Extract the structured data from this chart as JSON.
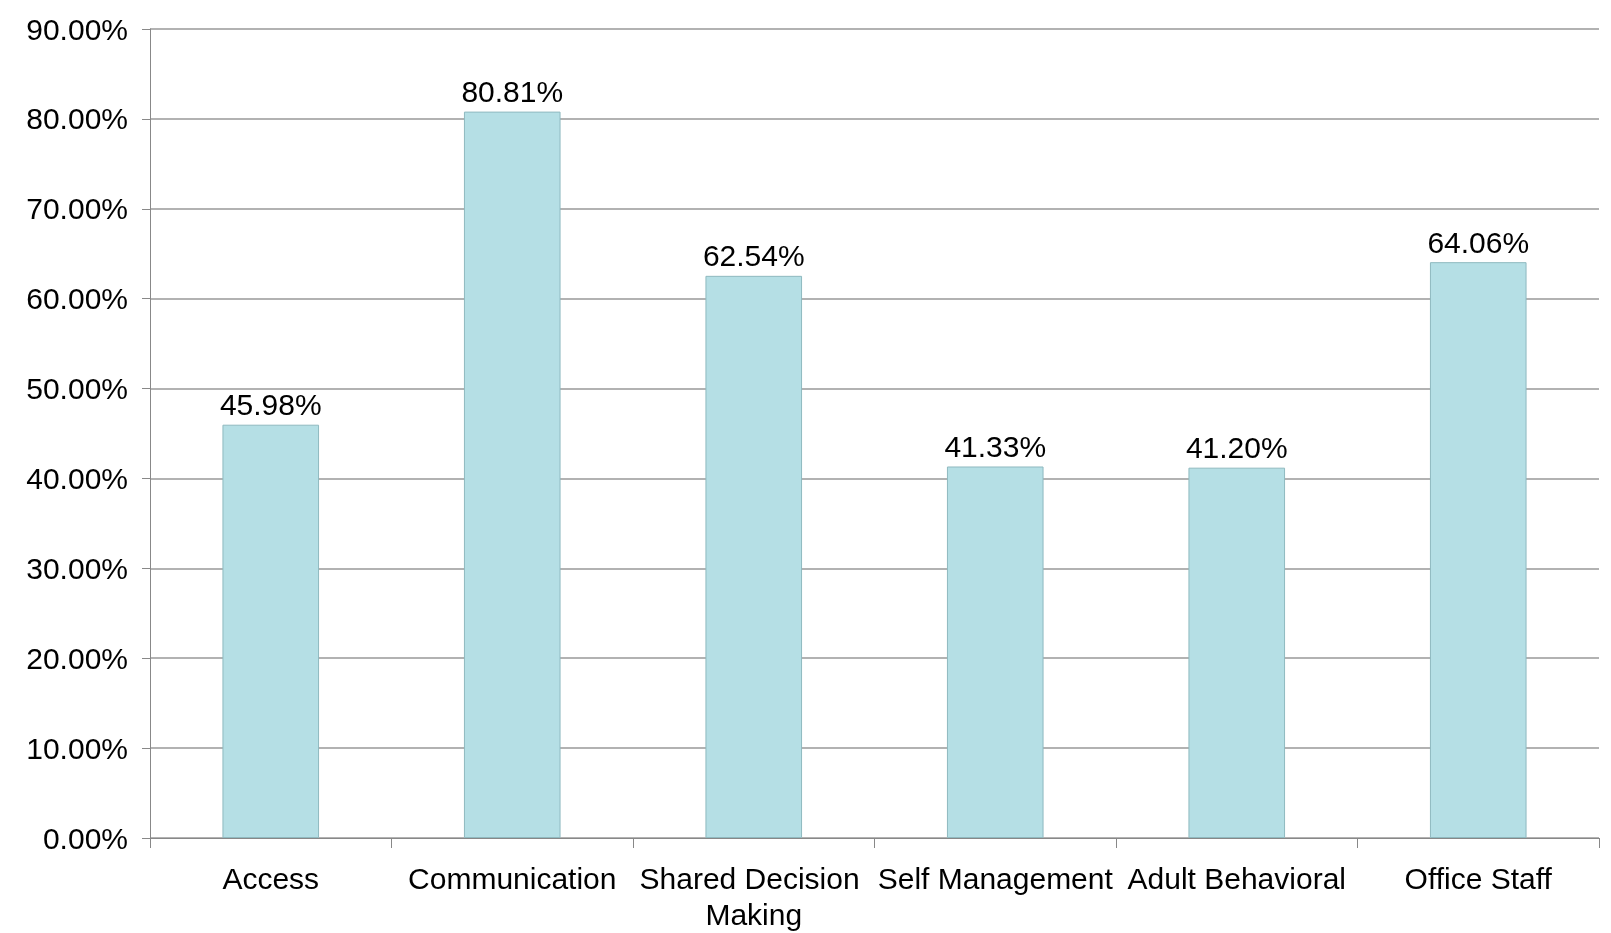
{
  "chart_data": {
    "type": "bar",
    "categories": [
      "Access",
      "Communication",
      "Shared Decision Making",
      "Self Management",
      "Adult Behavioral",
      "Office Staff"
    ],
    "values": [
      45.98,
      80.81,
      62.54,
      41.33,
      41.2,
      64.06
    ],
    "value_labels": [
      "45.98%",
      "80.81%",
      "62.54%",
      "41.33%",
      "41.20%",
      "64.06%"
    ],
    "color": "#b5dfe5",
    "ylim": [
      0,
      90
    ],
    "yticks": [
      {
        "value": 0,
        "label": "0.00%"
      },
      {
        "value": 10,
        "label": "10.00%"
      },
      {
        "value": 20,
        "label": "20.00%"
      },
      {
        "value": 30,
        "label": "30.00%"
      },
      {
        "value": 40,
        "label": "40.00%"
      },
      {
        "value": 50,
        "label": "50.00%"
      },
      {
        "value": 60,
        "label": "60.00%"
      },
      {
        "value": 70,
        "label": "70.00%"
      },
      {
        "value": 80,
        "label": "80.00%"
      },
      {
        "value": 90,
        "label": "90.00%"
      }
    ],
    "grid": "y"
  }
}
